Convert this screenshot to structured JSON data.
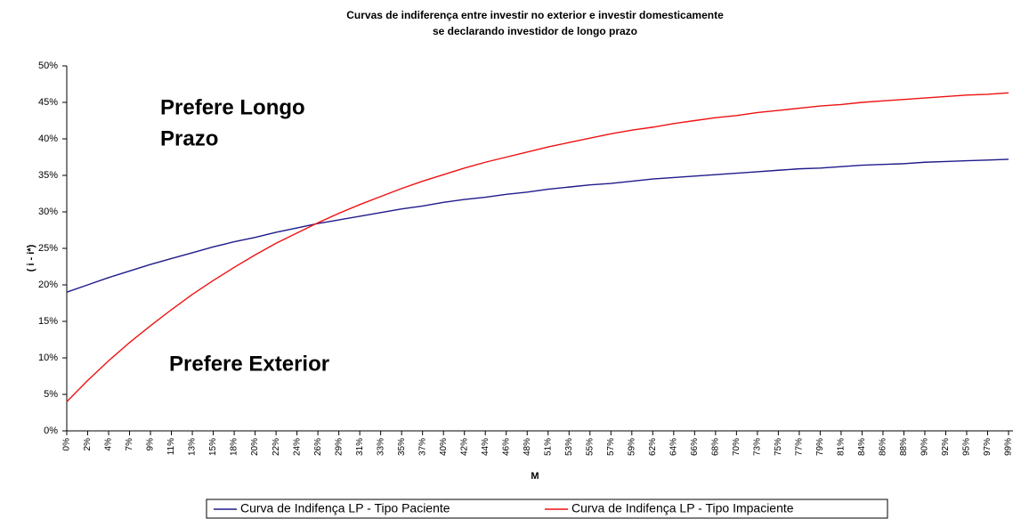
{
  "chart_data": {
    "type": "line",
    "title": [
      "Curvas de indiferença entre investir no exterior e investir domesticamente",
      "se declarando investidor de longo prazo"
    ],
    "x_label": "M",
    "y_label": "( i - i*)",
    "annotations": [
      [
        "Prefere Longo",
        "Prazo"
      ],
      [
        "Prefere Exterior"
      ]
    ],
    "categories": [
      "0%",
      "2%",
      "4%",
      "7%",
      "9%",
      "11%",
      "13%",
      "15%",
      "18%",
      "20%",
      "22%",
      "24%",
      "26%",
      "29%",
      "31%",
      "33%",
      "35%",
      "37%",
      "40%",
      "42%",
      "44%",
      "46%",
      "48%",
      "51%",
      "53%",
      "55%",
      "57%",
      "59%",
      "62%",
      "64%",
      "66%",
      "68%",
      "70%",
      "73%",
      "75%",
      "77%",
      "79%",
      "81%",
      "84%",
      "86%",
      "88%",
      "90%",
      "92%",
      "95%",
      "97%",
      "99%"
    ],
    "series": [
      {
        "name": "Curva de Indifença LP - Tipo Paciente",
        "color": "#1f1a8a",
        "values": [
          19.0,
          20.0,
          21.0,
          21.9,
          22.8,
          23.6,
          24.4,
          25.2,
          25.9,
          26.5,
          27.2,
          27.8,
          28.4,
          28.9,
          29.4,
          29.9,
          30.4,
          30.8,
          31.3,
          31.7,
          32.0,
          32.4,
          32.7,
          33.1,
          33.4,
          33.7,
          33.9,
          34.2,
          34.5,
          34.7,
          34.9,
          35.1,
          35.3,
          35.5,
          35.7,
          35.9,
          36.0,
          36.2,
          36.4,
          36.5,
          36.6,
          36.8,
          36.9,
          37.0,
          37.1,
          37.2
        ]
      },
      {
        "name": "Curva de Indifença LP - Tipo Impaciente",
        "color": "#ee1111",
        "values": [
          4.0,
          6.9,
          9.6,
          12.1,
          14.4,
          16.6,
          18.7,
          20.6,
          22.4,
          24.1,
          25.7,
          27.1,
          28.5,
          29.8,
          31.0,
          32.1,
          33.2,
          34.2,
          35.1,
          36.0,
          36.8,
          37.5,
          38.2,
          38.9,
          39.5,
          40.1,
          40.7,
          41.2,
          41.6,
          42.1,
          42.5,
          42.9,
          43.2,
          43.6,
          43.9,
          44.2,
          44.5,
          44.7,
          45.0,
          45.2,
          45.4,
          45.6,
          45.8,
          46.0,
          46.1,
          46.3
        ]
      }
    ],
    "ylim": [
      0,
      50
    ],
    "yticks": [
      {
        "value": 0,
        "label": "0%"
      },
      {
        "value": 5,
        "label": "5%"
      },
      {
        "value": 10,
        "label": "10%"
      },
      {
        "value": 15,
        "label": "15%"
      },
      {
        "value": 20,
        "label": "20%"
      },
      {
        "value": 25,
        "label": "25%"
      },
      {
        "value": 30,
        "label": "30%"
      },
      {
        "value": 35,
        "label": "35%"
      },
      {
        "value": 40,
        "label": "40%"
      },
      {
        "value": 45,
        "label": "45%"
      },
      {
        "value": 50,
        "label": "50%"
      }
    ],
    "legend": "bottom",
    "grid": false
  }
}
